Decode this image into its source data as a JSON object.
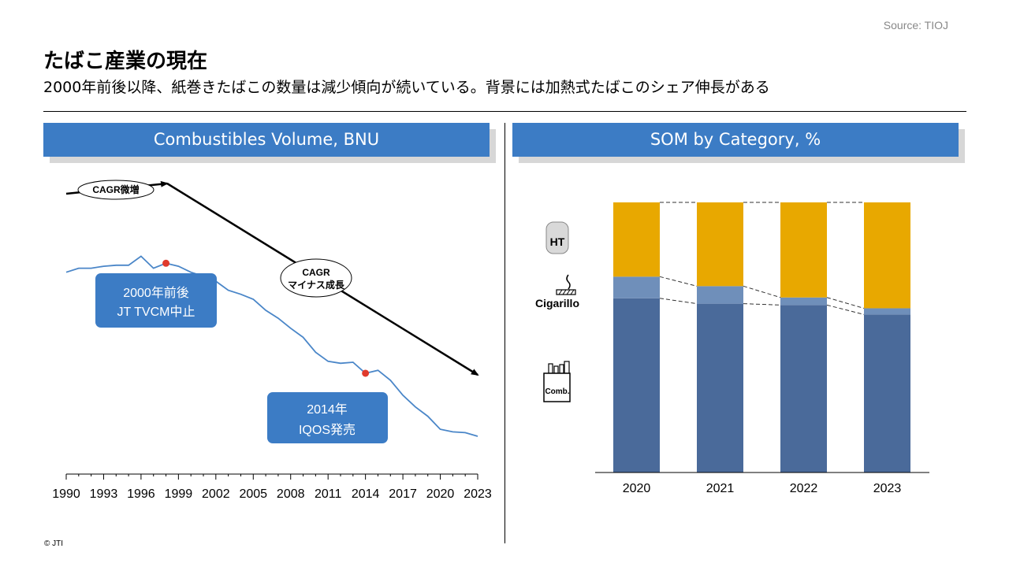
{
  "source": "Source: TIOJ",
  "title": "たばこ産業の現在",
  "subtitle": "2000年前後以降、紙巻きたばこの数量は減少傾向が続いている。背景には加熱式たばこのシェア伸長がある",
  "copyright": "© JTI",
  "left_panel": {
    "header": "Combustibles Volume, BNU",
    "trend_labels": {
      "rising": "CAGR微増",
      "falling_line1": "CAGR",
      "falling_line2": "マイナス成長"
    },
    "callouts": [
      {
        "line1": "2000年前後",
        "line2": "JT TVCM中止"
      },
      {
        "line1": "2014年",
        "line2": "IQOS発売"
      }
    ]
  },
  "right_panel": {
    "header": "SOM by Category, %",
    "icons": [
      {
        "icon": "heated-tobacco-icon",
        "label": "HT"
      },
      {
        "icon": "cigarillo-icon",
        "label": "Cigarillo"
      },
      {
        "icon": "cigarette-pack-icon",
        "label": "Comb."
      }
    ]
  },
  "colors": {
    "accent": "#3c7cc5",
    "line": "#4a86c8",
    "marker": "#e03a2c",
    "comb": "#4a6a9a",
    "cigarillo": "#6f8fba",
    "ht": "#e8a800"
  },
  "chart_data": [
    {
      "type": "line",
      "title": "Combustibles Volume, BNU",
      "x_ticks": [
        "1990",
        "1993",
        "1996",
        "1999",
        "2002",
        "2005",
        "2008",
        "2011",
        "2014",
        "2017",
        "2020",
        "2023"
      ],
      "xlim": [
        1990,
        2023
      ],
      "ylim": [
        0,
        100
      ],
      "series": [
        {
          "x": [
            1990,
            1991,
            1992,
            1993,
            1994,
            1995,
            1996,
            1997,
            1998,
            1999,
            2000,
            2001,
            2002,
            2003,
            2004,
            2005,
            2006,
            2007,
            2008,
            2009,
            2010,
            2011,
            2012,
            2013,
            2014,
            2015,
            2016,
            2017,
            2018,
            2019,
            2020,
            2021,
            2022,
            2023
          ],
          "values": [
            82,
            84,
            84,
            85,
            85.5,
            85.5,
            90,
            84,
            86.5,
            85,
            82,
            80,
            77.5,
            73,
            71,
            68.5,
            63,
            59,
            54,
            49.5,
            42,
            37.5,
            36.5,
            37,
            31.5,
            33,
            28,
            20.5,
            14.7,
            10,
            3.5,
            2.2,
            1.8,
            0
          ]
        }
      ],
      "markers": [
        {
          "x": 1998,
          "y": 86.5
        },
        {
          "x": 2014,
          "y": 31.5
        }
      ]
    },
    {
      "type": "bar",
      "title": "SOM by Category, %",
      "stacked": true,
      "categories": [
        "2020",
        "2021",
        "2022",
        "2023"
      ],
      "ylim": [
        0,
        100
      ],
      "series": [
        {
          "name": "Comb.",
          "values": [
            64.5,
            62.5,
            62,
            58.5
          ]
        },
        {
          "name": "Cigarillo",
          "values": [
            8,
            6.5,
            2.8,
            2.3
          ]
        },
        {
          "name": "HT",
          "values": [
            27.5,
            31,
            35.2,
            39.2
          ]
        }
      ]
    }
  ]
}
